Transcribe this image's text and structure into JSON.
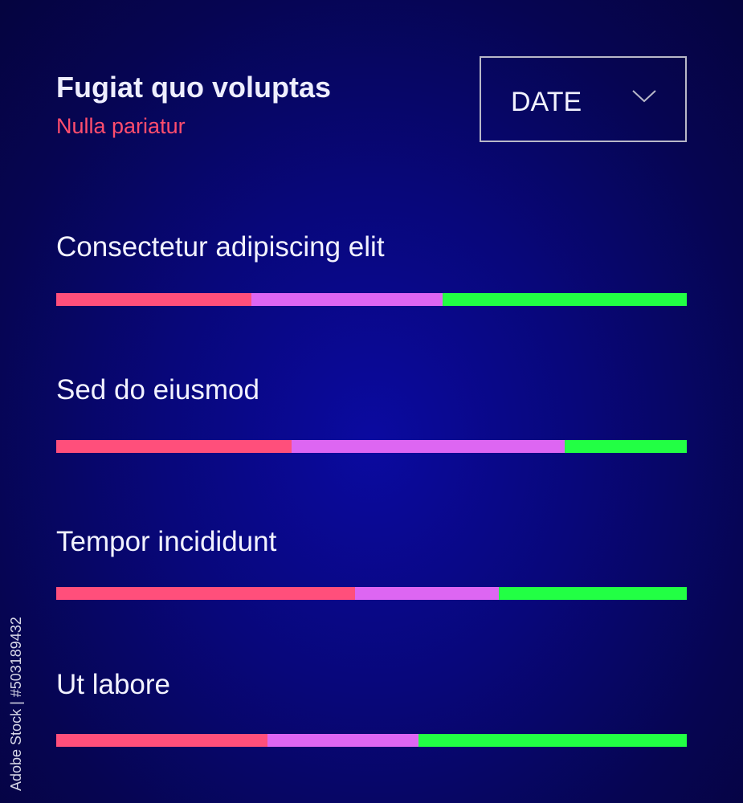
{
  "header": {
    "title": "Fugiat quo voluptas",
    "subtitle": "Nulla pariatur"
  },
  "dropdown": {
    "selected": "DATE",
    "icon": "chevron-down-icon"
  },
  "colors": {
    "segment_1": "#ff4f7b",
    "segment_2": "#dd66f2",
    "segment_3": "#22ff44",
    "subtitle": "#ff4d6d"
  },
  "rows": [
    {
      "label": "Consectetur adipiscing elit",
      "segments_percent": [
        31,
        30.3,
        38.7
      ]
    },
    {
      "label": "Sed do eiusmod",
      "segments_percent": [
        37.3,
        43.3,
        19.4
      ]
    },
    {
      "label": "Tempor incididunt",
      "segments_percent": [
        47.4,
        22.8,
        29.8
      ]
    },
    {
      "label": "Ut labore",
      "segments_percent": [
        33.5,
        24,
        42.5
      ]
    }
  ],
  "watermark": "Adobe Stock | #503189432"
}
